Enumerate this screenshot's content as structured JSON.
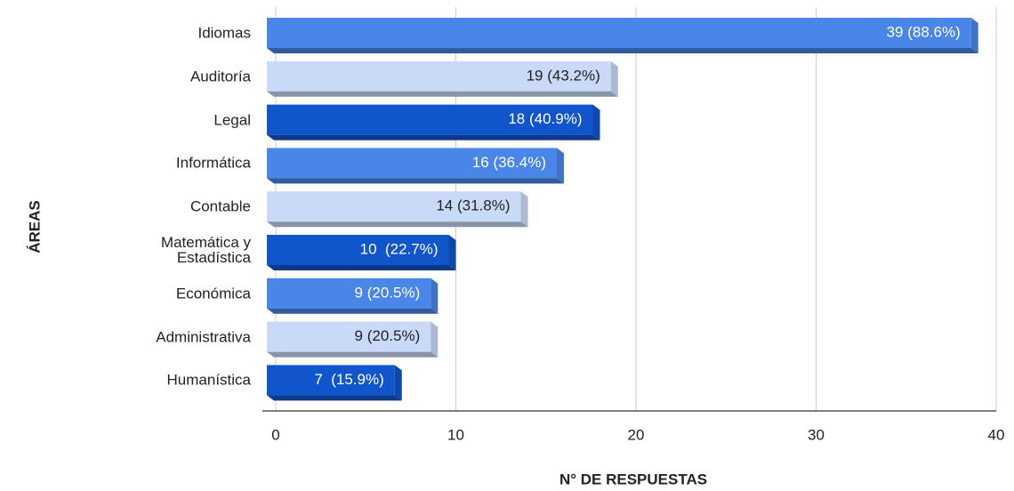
{
  "chart_data": {
    "type": "bar",
    "orientation": "horizontal",
    "categories": [
      "Idiomas",
      "Auditoría",
      "Legal",
      "Informática",
      "Contable",
      "Matemática y\nEstadística",
      "Económica",
      "Administrativa",
      "Humanística"
    ],
    "values": [
      39,
      19,
      18,
      16,
      14,
      10,
      9,
      9,
      7
    ],
    "value_labels": [
      "39 (88.6%)",
      "19 (43.2%)",
      "18 (40.9%)",
      "16 (36.4%)",
      "14 (31.8%)",
      "10  (22.7%)",
      "9 (20.5%)",
      "9 (20.5%)",
      "7  (15.9%)"
    ],
    "colors": [
      "#4a86e8",
      "#c9daf8",
      "#1155cc",
      "#4a86e8",
      "#c9daf8",
      "#1155cc",
      "#4a86e8",
      "#c9daf8",
      "#1155cc"
    ],
    "xlim": [
      0,
      40
    ],
    "xticks": [
      0,
      10,
      20,
      30,
      40
    ],
    "grid": true,
    "x_label": "N° DE RESPUESTAS",
    "y_label": "ÁREAS"
  }
}
